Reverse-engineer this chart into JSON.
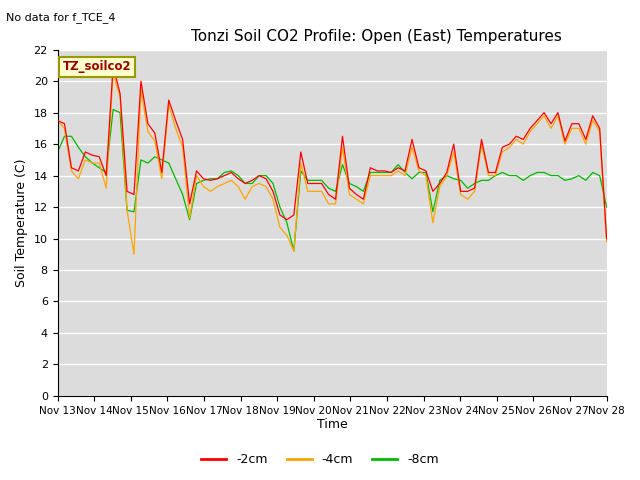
{
  "title": "Tonzi Soil CO2 Profile: Open (East) Temperatures",
  "no_data_text": "No data for f_TCE_4",
  "ylabel": "Soil Temperature (C)",
  "xlabel": "Time",
  "legend_label": "TZ_soilco2",
  "ylim": [
    0,
    22
  ],
  "yticks": [
    0,
    2,
    4,
    6,
    8,
    10,
    12,
    14,
    16,
    18,
    20,
    22
  ],
  "xtick_labels": [
    "Nov 13",
    "Nov 14",
    "Nov 15",
    "Nov 16",
    "Nov 17",
    "Nov 18",
    "Nov 19",
    "Nov 20",
    "Nov 21",
    "Nov 22",
    "Nov 23",
    "Nov 24",
    "Nov 25",
    "Nov 26",
    "Nov 27",
    "Nov 28"
  ],
  "series_labels": [
    "-2cm",
    "-4cm",
    "-8cm"
  ],
  "series_colors": [
    "#ff0000",
    "#ffa500",
    "#00bb00"
  ],
  "plot_bg_color": "#dcdcdc",
  "title_fontsize": 11,
  "legend_box_color": "#ffffcc",
  "legend_box_edge": "#999900",
  "t2cm": [
    17.5,
    17.3,
    14.5,
    14.3,
    15.5,
    15.3,
    15.2,
    14.0,
    21.0,
    19.2,
    13.0,
    12.8,
    20.0,
    17.3,
    16.7,
    14.2,
    18.8,
    17.5,
    16.3,
    12.2,
    14.3,
    13.8,
    13.7,
    13.8,
    14.0,
    14.2,
    13.8,
    13.5,
    13.7,
    14.0,
    13.8,
    13.0,
    11.5,
    11.2,
    11.5,
    15.5,
    13.5,
    13.5,
    13.5,
    12.8,
    12.5,
    16.5,
    13.2,
    12.8,
    12.5,
    14.5,
    14.3,
    14.3,
    14.2,
    14.5,
    14.3,
    16.3,
    14.5,
    14.3,
    13.0,
    13.5,
    14.2,
    16.0,
    13.0,
    13.0,
    13.2,
    16.3,
    14.2,
    14.2,
    15.8,
    16.0,
    16.5,
    16.3,
    17.0,
    17.5,
    18.0,
    17.3,
    18.0,
    16.2,
    17.3,
    17.3,
    16.3,
    17.8,
    17.0,
    10.0
  ],
  "t4cm": [
    17.5,
    17.0,
    14.3,
    13.8,
    15.0,
    14.8,
    14.8,
    13.2,
    20.5,
    19.0,
    11.8,
    9.0,
    19.5,
    16.8,
    16.2,
    13.8,
    18.5,
    17.0,
    15.8,
    11.3,
    14.0,
    13.3,
    13.0,
    13.3,
    13.5,
    13.7,
    13.3,
    12.5,
    13.3,
    13.5,
    13.3,
    12.5,
    10.7,
    10.2,
    9.2,
    14.8,
    13.0,
    13.0,
    13.0,
    12.2,
    12.2,
    15.8,
    12.8,
    12.5,
    12.2,
    14.0,
    14.0,
    14.0,
    14.0,
    14.3,
    14.0,
    15.8,
    14.3,
    14.0,
    11.0,
    13.3,
    14.0,
    15.5,
    12.8,
    12.5,
    13.0,
    16.0,
    14.0,
    14.0,
    15.5,
    15.8,
    16.3,
    16.0,
    16.8,
    17.3,
    17.8,
    17.0,
    17.8,
    16.0,
    17.0,
    17.0,
    16.0,
    17.5,
    16.8,
    9.8
  ],
  "t8cm": [
    15.5,
    16.5,
    16.5,
    15.8,
    15.2,
    14.8,
    14.5,
    14.2,
    18.2,
    18.0,
    11.8,
    11.7,
    15.0,
    14.8,
    15.2,
    15.0,
    14.8,
    13.8,
    12.8,
    11.2,
    13.5,
    13.7,
    13.8,
    13.8,
    14.2,
    14.3,
    14.0,
    13.5,
    13.5,
    14.0,
    14.0,
    13.5,
    12.0,
    11.0,
    9.2,
    14.3,
    13.7,
    13.7,
    13.7,
    13.2,
    13.0,
    14.7,
    13.5,
    13.3,
    13.0,
    14.2,
    14.2,
    14.2,
    14.2,
    14.7,
    14.2,
    13.8,
    14.2,
    14.2,
    11.7,
    13.7,
    14.0,
    13.8,
    13.7,
    13.2,
    13.5,
    13.7,
    13.7,
    14.0,
    14.2,
    14.0,
    14.0,
    13.7,
    14.0,
    14.2,
    14.2,
    14.0,
    14.0,
    13.7,
    13.8,
    14.0,
    13.7,
    14.2,
    14.0,
    12.0
  ]
}
